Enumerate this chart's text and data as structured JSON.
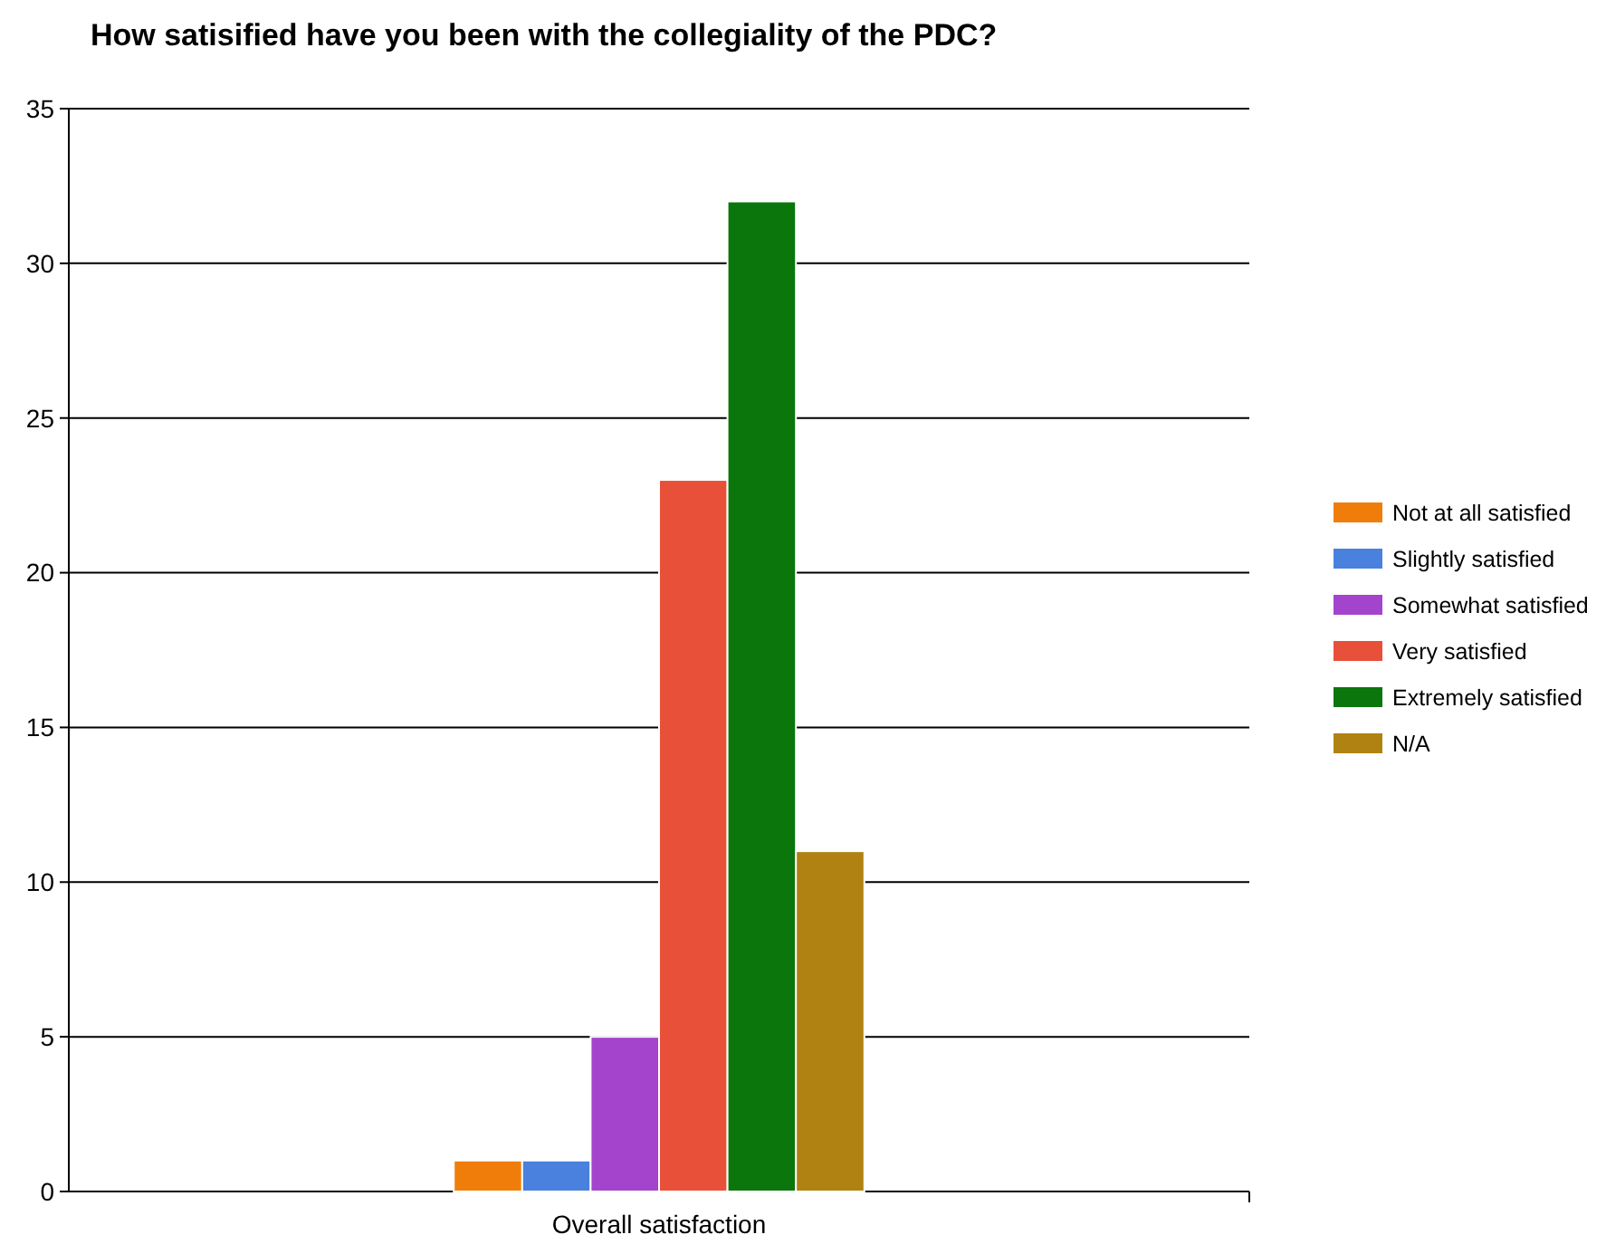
{
  "chart_data": {
    "type": "bar",
    "title": "How satisified have you been with the collegiality of the PDC?",
    "categories": [
      "Overall satisfaction"
    ],
    "series": [
      {
        "name": "Not at all satisfied",
        "color": "#f07d0a",
        "values": [
          1
        ]
      },
      {
        "name": "Slightly satisfied",
        "color": "#4a80de",
        "values": [
          1
        ]
      },
      {
        "name": "Somewhat satisfied",
        "color": "#a444cc",
        "values": [
          5
        ]
      },
      {
        "name": "Very satisfied",
        "color": "#e8503a",
        "values": [
          23
        ]
      },
      {
        "name": "Extremely satisfied",
        "color": "#0b760b",
        "values": [
          32
        ]
      },
      {
        "name": "N/A",
        "color": "#b08212",
        "values": [
          11
        ]
      }
    ],
    "ylim": [
      0,
      35
    ],
    "yticks": [
      0,
      5,
      10,
      15,
      20,
      25,
      30,
      35
    ],
    "grid": "y",
    "legend": "right"
  }
}
